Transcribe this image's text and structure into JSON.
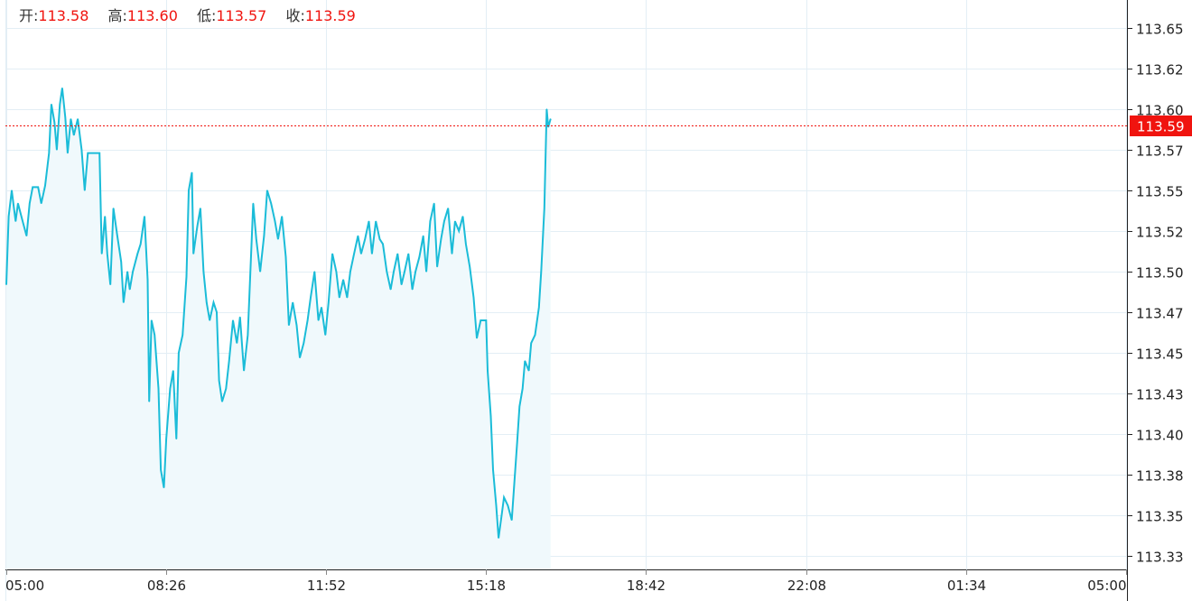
{
  "header": {
    "open_label": "开:",
    "open": "113.58",
    "high_label": "高:",
    "high": "113.60",
    "low_label": "低:",
    "low": "113.57",
    "close_label": "收:",
    "close": "113.59"
  },
  "chart_data": {
    "type": "area",
    "title": "",
    "xlabel": "",
    "ylabel": "",
    "grid": true,
    "colors": {
      "line": "#1bbcd8",
      "fill": "#f0f9fc",
      "grid": "#e3eef5",
      "last_price": "#f0140f"
    },
    "x_ticks": [
      "05:00",
      "08:26",
      "11:52",
      "15:18",
      "18:42",
      "22:08",
      "01:34",
      "05:00"
    ],
    "y_ticks": [
      "113.65",
      "113.62",
      "113.60",
      "113.57",
      "113.55",
      "113.52",
      "113.50",
      "113.47",
      "113.45",
      "113.43",
      "113.40",
      "113.38",
      "113.35",
      "113.33"
    ],
    "ylim": [
      113.325,
      113.65
    ],
    "last_price": 113.59,
    "last_price_label": "113.59",
    "x": [
      "05:00",
      "05:03",
      "05:07",
      "05:12",
      "05:15",
      "05:21",
      "05:26",
      "05:30",
      "05:34",
      "05:41",
      "05:45",
      "05:50",
      "05:55",
      "05:58",
      "06:02",
      "06:05",
      "06:09",
      "06:12",
      "06:16",
      "06:19",
      "06:23",
      "06:27",
      "06:32",
      "06:37",
      "06:41",
      "06:45",
      "07:00",
      "07:03",
      "07:07",
      "07:10",
      "07:14",
      "07:18",
      "07:23",
      "07:28",
      "07:31",
      "07:36",
      "07:39",
      "07:43",
      "07:49",
      "07:53",
      "07:58",
      "08:02",
      "08:04",
      "08:07",
      "08:11",
      "08:16",
      "08:19",
      "08:23",
      "08:26",
      "08:31",
      "08:35",
      "08:39",
      "08:42",
      "08:47",
      "08:52",
      "08:55",
      "08:59",
      "09:01",
      "09:06",
      "09:10",
      "09:14",
      "09:18",
      "09:22",
      "09:27",
      "09:31",
      "09:34",
      "09:38",
      "09:43",
      "09:47",
      "09:52",
      "09:57",
      "10:01",
      "10:06",
      "10:11",
      "10:14",
      "10:18",
      "10:22",
      "10:27",
      "10:32",
      "10:36",
      "10:41",
      "10:46",
      "10:50",
      "10:55",
      "11:00",
      "11:04",
      "11:09",
      "11:14",
      "11:18",
      "11:23",
      "11:28",
      "11:32",
      "11:37",
      "11:42",
      "11:46",
      "11:51",
      "11:55",
      "12:00",
      "12:05",
      "12:09",
      "12:14",
      "12:19",
      "12:23",
      "12:28",
      "12:33",
      "12:37",
      "12:42",
      "12:47",
      "12:51",
      "12:56",
      "13:01",
      "13:05",
      "13:10",
      "13:15",
      "13:19",
      "13:24",
      "13:29",
      "13:33",
      "13:38",
      "13:43",
      "13:47",
      "13:52",
      "13:57",
      "14:01",
      "14:06",
      "14:11",
      "14:15",
      "14:20",
      "14:24",
      "14:29",
      "14:34",
      "14:38",
      "14:43",
      "14:48",
      "14:52",
      "14:57",
      "15:02",
      "15:06",
      "15:11",
      "15:18",
      "15:20",
      "15:24",
      "15:27",
      "15:31",
      "15:34",
      "15:38",
      "15:41",
      "15:46",
      "15:51",
      "15:54",
      "15:58",
      "16:01",
      "16:05",
      "16:08",
      "16:13",
      "16:16",
      "16:21",
      "16:26",
      "16:29",
      "16:33",
      "16:36",
      "16:38",
      "16:41"
    ],
    "values": [
      113.492,
      113.534,
      113.55,
      113.531,
      113.542,
      113.531,
      113.522,
      113.542,
      113.552,
      113.552,
      113.542,
      113.553,
      113.573,
      113.603,
      113.592,
      113.575,
      113.603,
      113.613,
      113.595,
      113.573,
      113.594,
      113.584,
      113.594,
      113.575,
      113.55,
      113.573,
      113.573,
      113.511,
      113.534,
      113.511,
      113.492,
      113.539,
      113.522,
      113.506,
      113.481,
      113.5,
      113.489,
      113.5,
      113.511,
      113.517,
      113.534,
      113.495,
      113.42,
      113.47,
      113.461,
      113.428,
      113.378,
      113.367,
      113.397,
      113.428,
      113.439,
      113.397,
      113.45,
      113.461,
      113.497,
      113.55,
      113.561,
      113.511,
      113.528,
      113.539,
      113.5,
      113.481,
      113.47,
      113.481,
      113.475,
      113.433,
      113.42,
      113.428,
      113.445,
      113.47,
      113.456,
      113.472,
      113.439,
      113.461,
      113.495,
      113.542,
      113.52,
      113.5,
      113.522,
      113.55,
      113.542,
      113.531,
      113.52,
      113.534,
      113.509,
      113.467,
      113.481,
      113.467,
      113.447,
      113.456,
      113.47,
      113.484,
      113.5,
      113.47,
      113.478,
      113.461,
      113.481,
      113.511,
      113.5,
      113.484,
      113.495,
      113.484,
      113.5,
      113.511,
      113.522,
      113.511,
      113.52,
      113.531,
      113.511,
      113.531,
      113.52,
      113.517,
      113.5,
      113.489,
      113.5,
      113.511,
      113.492,
      113.5,
      113.511,
      113.489,
      113.5,
      113.509,
      113.522,
      113.5,
      113.531,
      113.542,
      113.503,
      113.52,
      113.531,
      113.539,
      113.511,
      113.531,
      113.525,
      113.534,
      113.517,
      113.503,
      113.484,
      113.459,
      113.47,
      113.47,
      113.439,
      113.411,
      113.378,
      113.356,
      113.336,
      113.35,
      113.361,
      113.356,
      113.347,
      113.367,
      113.395,
      113.417,
      113.428,
      113.445,
      113.439,
      113.456,
      113.461,
      113.478,
      113.5,
      113.539,
      113.6,
      113.589,
      113.594
    ]
  }
}
